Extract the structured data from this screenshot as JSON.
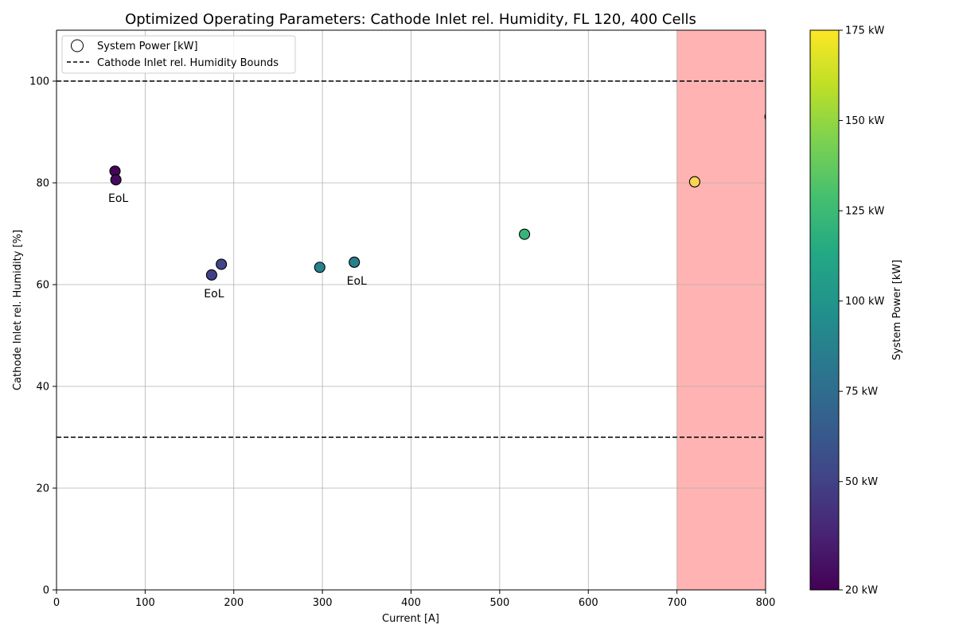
{
  "chart_data": {
    "type": "scatter",
    "title": "Optimized Operating Parameters: Cathode Inlet rel. Humidity, FL 120, 400 Cells",
    "xlabel": "Current [A]",
    "ylabel": "Cathode Inlet rel. Humidity [%]",
    "xlim": [
      0,
      800
    ],
    "ylim": [
      0,
      110
    ],
    "xticks": [
      0,
      100,
      200,
      300,
      400,
      500,
      600,
      700,
      800
    ],
    "yticks": [
      0,
      20,
      40,
      60,
      80,
      100
    ],
    "grid": true,
    "legend": {
      "position": "top-left",
      "entries": [
        {
          "label": "System Power [kW]",
          "style": "open-circle"
        },
        {
          "label": "Cathode Inlet rel. Humidity Bounds",
          "style": "dashed-line"
        }
      ]
    },
    "bounds": [
      30,
      100
    ],
    "shaded_region": {
      "x_from": 700,
      "x_to": 800,
      "color": "#ffb3b3"
    },
    "points": [
      {
        "x": 66,
        "y": 82.3,
        "power": 22
      },
      {
        "x": 67,
        "y": 80.6,
        "power": 24,
        "label": "EoL"
      },
      {
        "x": 175,
        "y": 61.9,
        "power": 50,
        "label": "EoL"
      },
      {
        "x": 186,
        "y": 64.0,
        "power": 52
      },
      {
        "x": 297,
        "y": 63.4,
        "power": 88
      },
      {
        "x": 336,
        "y": 64.4,
        "power": 86,
        "label": "EoL"
      },
      {
        "x": 528,
        "y": 69.9,
        "power": 122
      },
      {
        "x": 720,
        "y": 80.2,
        "power": 190
      },
      {
        "x": 805,
        "y": 93.0,
        "power": 200
      }
    ],
    "colorbar": {
      "label": "System Power [kW]",
      "min": 20,
      "max": 175,
      "ticks": [
        {
          "value": 20,
          "label": "20 kW"
        },
        {
          "value": 50,
          "label": "50 kW"
        },
        {
          "value": 75,
          "label": "75 kW"
        },
        {
          "value": 100,
          "label": "100 kW"
        },
        {
          "value": 125,
          "label": "125 kW"
        },
        {
          "value": 150,
          "label": "150 kW"
        },
        {
          "value": 175,
          "label": "175 kW"
        }
      ]
    }
  }
}
